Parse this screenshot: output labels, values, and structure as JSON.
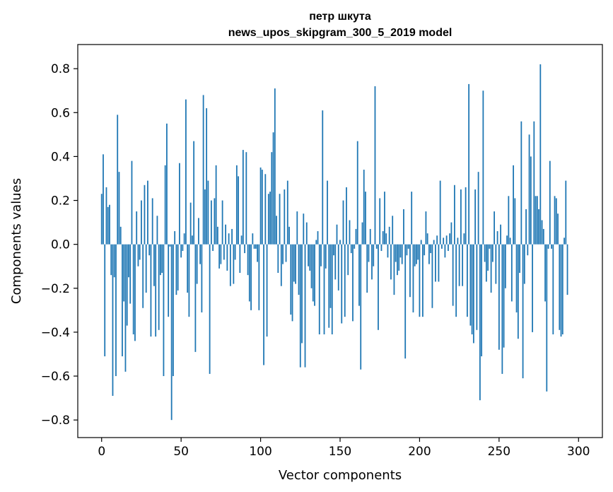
{
  "chart_data": {
    "type": "bar",
    "title": [
      "петр шкута",
      "news_upos_skipgram_300_5_2019 model"
    ],
    "xlabel": "Vector components",
    "ylabel": "Components values",
    "xlim": [
      -15,
      315
    ],
    "ylim": [
      -0.88,
      0.91
    ],
    "xticks": [
      0,
      50,
      100,
      150,
      200,
      250,
      300
    ],
    "yticks": [
      -0.8,
      -0.6,
      -0.4,
      -0.2,
      0.0,
      0.2,
      0.4,
      0.6,
      0.8
    ],
    "ytick_labels": [
      "−0.8",
      "−0.6",
      "−0.4",
      "−0.2",
      "0.0",
      "0.2",
      "0.4",
      "0.6",
      "0.8"
    ],
    "bar_color": "#1f77b4",
    "grid": false,
    "x": "0..299 (one bar per vector component)",
    "values": [
      0.23,
      0.41,
      -0.51,
      0.26,
      0.17,
      0.18,
      -0.14,
      -0.69,
      -0.15,
      -0.6,
      0.59,
      0.33,
      0.08,
      -0.51,
      -0.26,
      -0.58,
      -0.37,
      -0.15,
      -0.27,
      0.38,
      -0.41,
      -0.44,
      0.15,
      -0.1,
      -0.07,
      0.2,
      -0.29,
      0.27,
      -0.22,
      0.29,
      -0.05,
      -0.42,
      0.21,
      -0.19,
      -0.42,
      0.13,
      -0.39,
      -0.14,
      -0.13,
      -0.6,
      0.36,
      0.55,
      -0.33,
      -0.01,
      -0.8,
      -0.6,
      0.06,
      -0.23,
      -0.21,
      0.37,
      -0.06,
      -0.03,
      0.05,
      0.66,
      -0.22,
      -0.33,
      0.19,
      0.04,
      0.47,
      -0.49,
      -0.18,
      0.12,
      -0.09,
      -0.31,
      0.68,
      0.25,
      0.62,
      0.29,
      -0.59,
      0.2,
      -0.03,
      0.21,
      0.36,
      0.08,
      -0.11,
      -0.09,
      0.2,
      -0.07,
      0.09,
      -0.12,
      0.05,
      -0.19,
      0.07,
      -0.18,
      -0.07,
      0.36,
      0.31,
      -0.13,
      0.04,
      0.43,
      -0.04,
      0.42,
      -0.14,
      -0.26,
      -0.3,
      0.05,
      -0.02,
      -0.02,
      -0.08,
      -0.3,
      0.35,
      0.34,
      -0.55,
      0.32,
      -0.42,
      0.23,
      0.24,
      0.42,
      0.51,
      0.71,
      0.13,
      -0.13,
      0.23,
      -0.19,
      -0.09,
      0.25,
      -0.08,
      0.29,
      0.08,
      -0.32,
      -0.35,
      -0.17,
      -0.18,
      0.15,
      -0.23,
      -0.56,
      -0.45,
      0.14,
      -0.56,
      0.1,
      -0.1,
      -0.12,
      -0.2,
      -0.26,
      -0.28,
      0.02,
      0.06,
      -0.41,
      -0.1,
      0.61,
      -0.41,
      -0.11,
      0.29,
      -0.38,
      -0.29,
      -0.41,
      -0.05,
      -0.16,
      0.09,
      -0.21,
      0.02,
      -0.36,
      0.2,
      -0.33,
      0.26,
      -0.14,
      0.11,
      -0.04,
      -0.35,
      -0.02,
      0.07,
      0.47,
      -0.28,
      -0.57,
      0.1,
      0.34,
      0.24,
      -0.22,
      -0.08,
      0.07,
      -0.16,
      -0.1,
      0.72,
      -0.02,
      -0.39,
      0.21,
      -0.03,
      0.06,
      0.24,
      0.05,
      -0.06,
      0.08,
      -0.16,
      0.13,
      -0.23,
      -0.08,
      -0.14,
      -0.12,
      -0.06,
      -0.09,
      0.16,
      -0.52,
      -0.05,
      -0.02,
      -0.24,
      0.24,
      -0.31,
      -0.1,
      -0.09,
      -0.07,
      -0.33,
      0.02,
      -0.33,
      -0.05,
      0.15,
      0.05,
      -0.09,
      -0.04,
      -0.29,
      0.02,
      -0.17,
      0.04,
      -0.17,
      0.29,
      -0.02,
      0.03,
      -0.06,
      0.04,
      -0.03,
      0.05,
      0.1,
      -0.28,
      0.27,
      -0.33,
      0.03,
      -0.19,
      0.25,
      -0.19,
      0.05,
      0.26,
      -0.33,
      0.73,
      -0.37,
      -0.41,
      -0.45,
      0.25,
      -0.39,
      0.33,
      -0.71,
      -0.51,
      0.7,
      -0.08,
      -0.17,
      -0.12,
      -0.02,
      -0.22,
      -0.08,
      0.15,
      -0.18,
      0.06,
      -0.48,
      0.09,
      -0.59,
      -0.47,
      -0.2,
      0.04,
      0.22,
      0.03,
      -0.26,
      0.36,
      0.21,
      -0.31,
      -0.43,
      -0.13,
      0.56,
      -0.61,
      -0.18,
      0.16,
      -0.05,
      0.5,
      0.4,
      -0.4,
      0.56,
      0.22,
      0.22,
      0.16,
      0.82,
      0.11,
      0.07,
      -0.26,
      -0.67,
      -0.02,
      0.38,
      -0.02,
      -0.41,
      0.22,
      0.21,
      0.14,
      -0.39,
      -0.42,
      -0.41,
      0.03,
      0.29,
      -0.23
    ]
  }
}
